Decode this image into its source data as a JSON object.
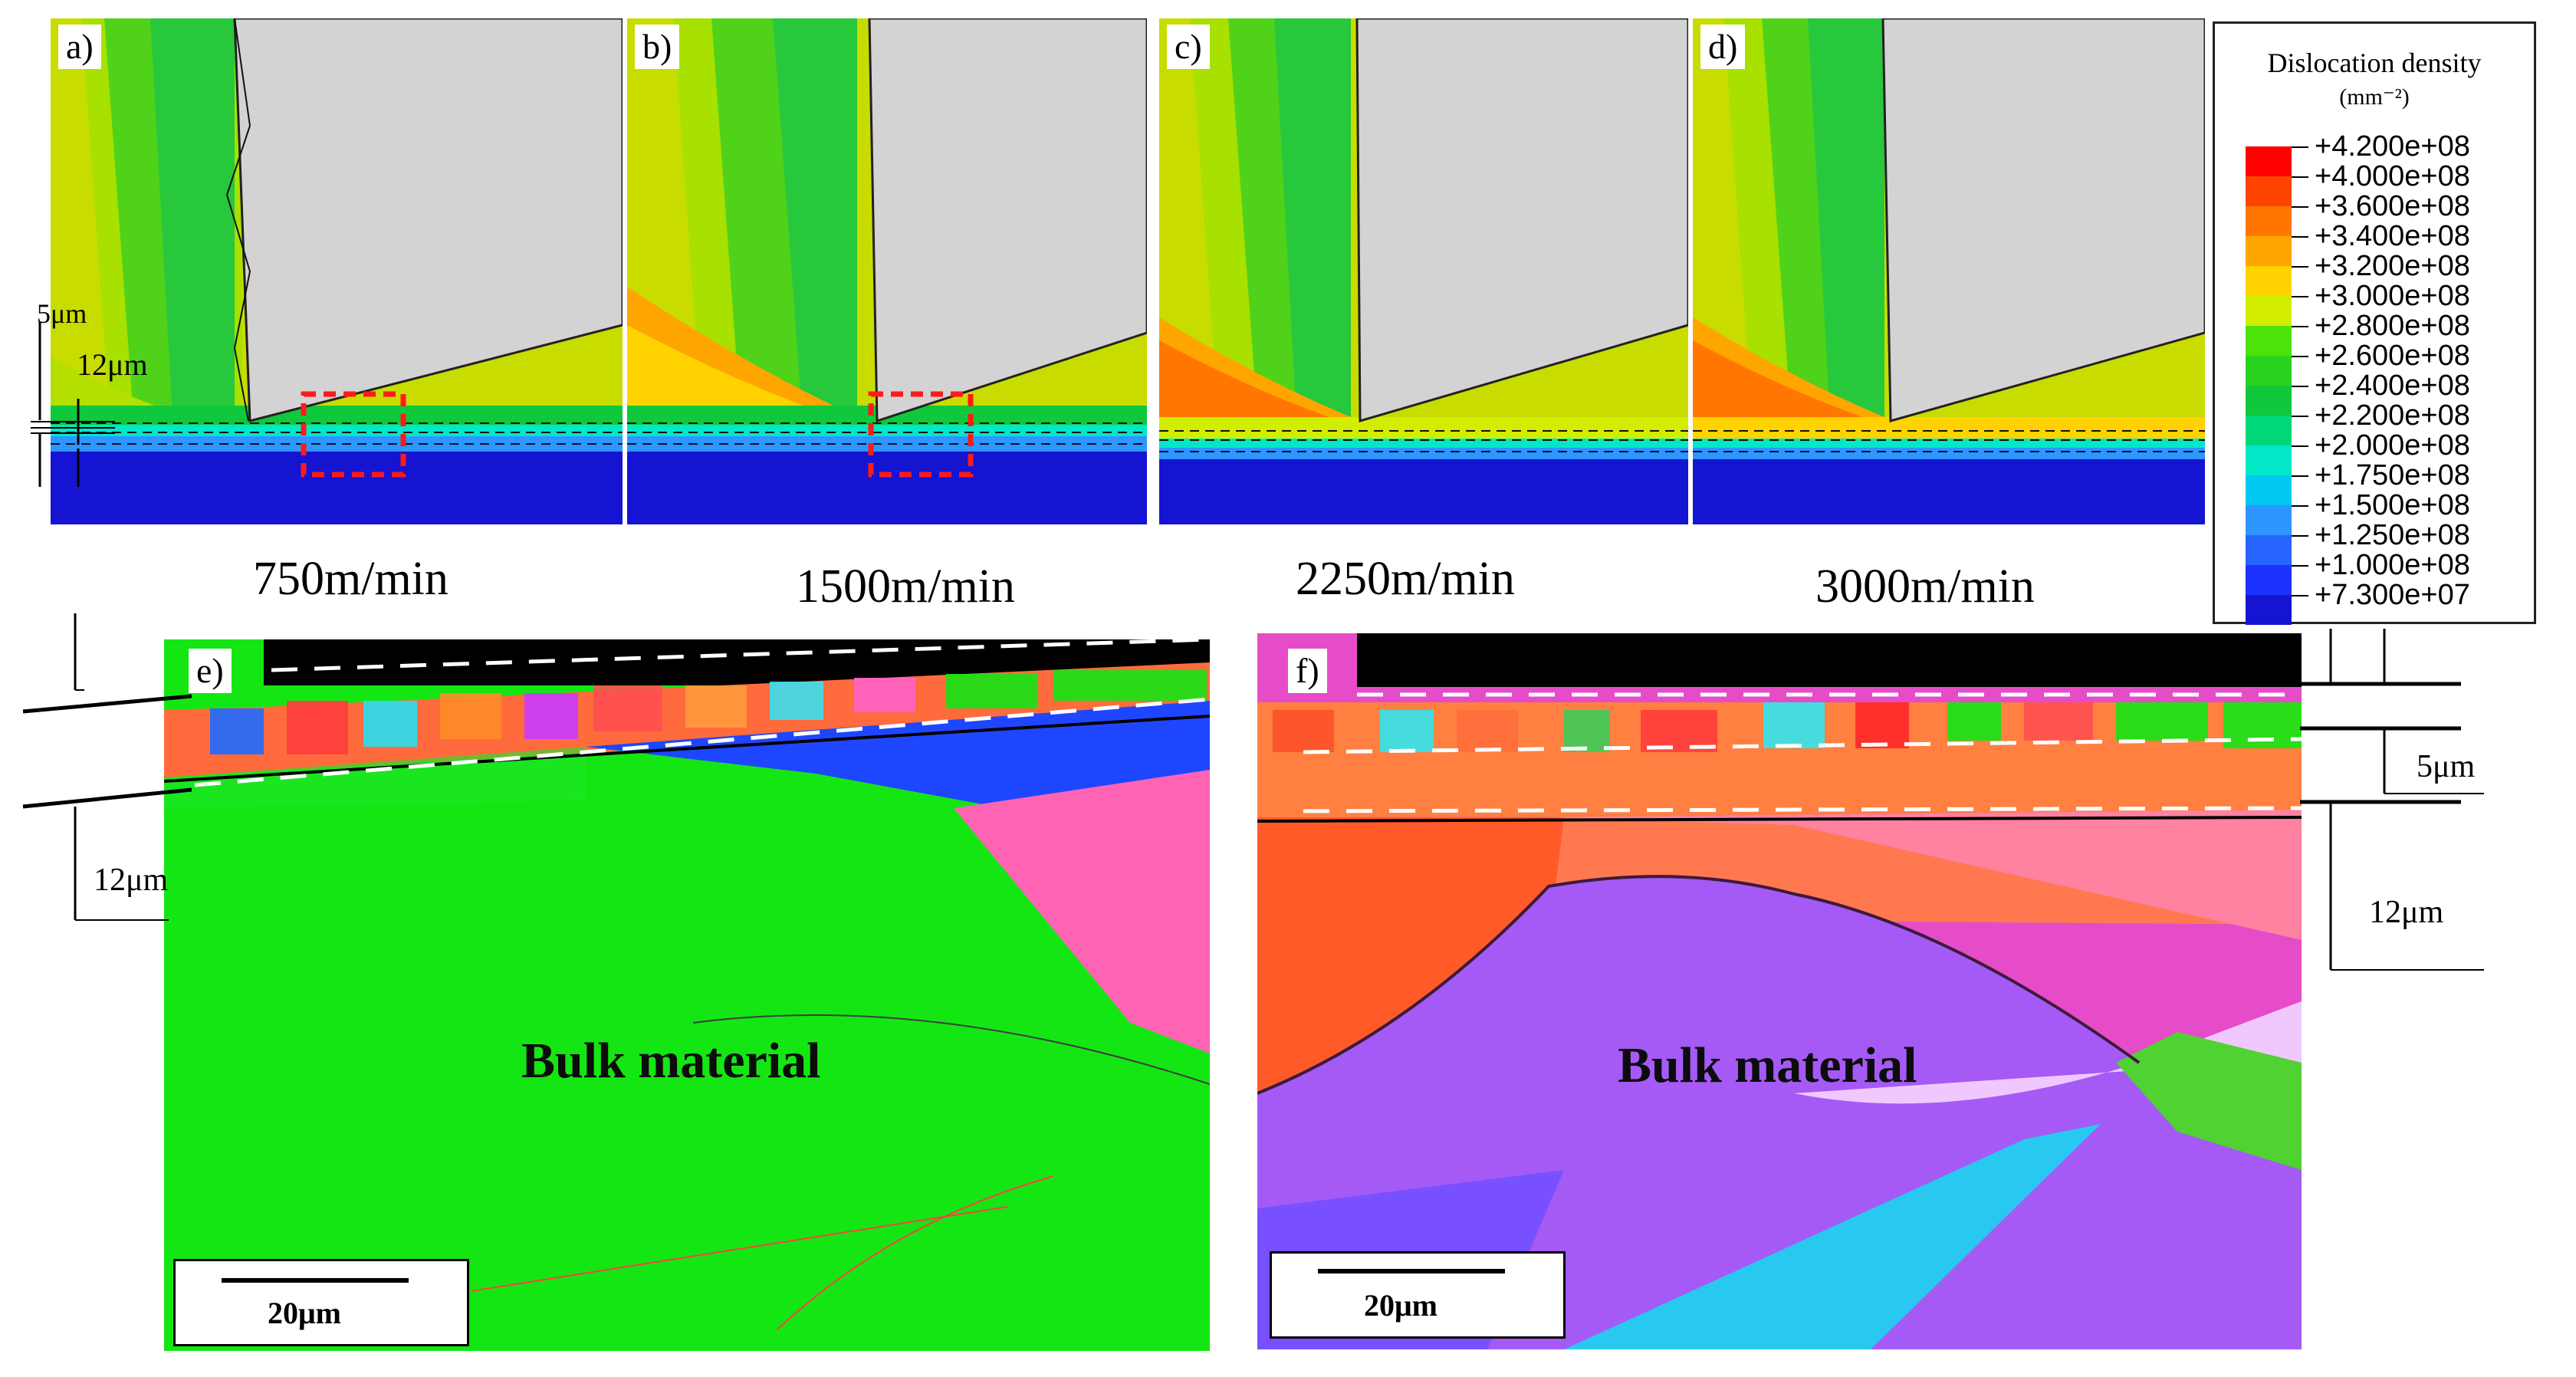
{
  "panels": {
    "a": {
      "label": "a)",
      "speed": "750m/min"
    },
    "b": {
      "label": "b)",
      "speed": "1500m/min"
    },
    "c": {
      "label": "c)",
      "speed": "2250m/min"
    },
    "d": {
      "label": "d)",
      "speed": "3000m/min"
    },
    "e": {
      "label": "e)",
      "bulk_label": "Bulk material",
      "scale_label": "20μm"
    },
    "f": {
      "label": "f)",
      "bulk_label": "Bulk material",
      "scale_label": "20μm"
    }
  },
  "dimensions": {
    "a_5um": "5μm",
    "a_12um": "12μm",
    "e_12um": "12μm",
    "f_5um": "5μm",
    "f_12um": "12μm"
  },
  "legend": {
    "title": "Dislocation density",
    "unit": "(mm⁻²)",
    "entries": [
      {
        "value": "+4.200e+08",
        "color": "#ff0000"
      },
      {
        "value": "+4.000e+08",
        "color": "#ff4400"
      },
      {
        "value": "+3.600e+08",
        "color": "#ff7700"
      },
      {
        "value": "+3.400e+08",
        "color": "#ffa500"
      },
      {
        "value": "+3.200e+08",
        "color": "#ffd200"
      },
      {
        "value": "+3.000e+08",
        "color": "#d2ed00"
      },
      {
        "value": "+2.800e+08",
        "color": "#4be30a"
      },
      {
        "value": "+2.600e+08",
        "color": "#28d21e"
      },
      {
        "value": "+2.400e+08",
        "color": "#0fc83c"
      },
      {
        "value": "+2.200e+08",
        "color": "#00d778"
      },
      {
        "value": "+2.000e+08",
        "color": "#00e8c8"
      },
      {
        "value": "+1.750e+08",
        "color": "#00c8f0"
      },
      {
        "value": "+1.500e+08",
        "color": "#2d96ff"
      },
      {
        "value": "+1.250e+08",
        "color": "#2864ff"
      },
      {
        "value": "+1.000e+08",
        "color": "#1e32ff"
      },
      {
        "value": "+7.300e+07",
        "color": "#1414d2"
      }
    ]
  }
}
